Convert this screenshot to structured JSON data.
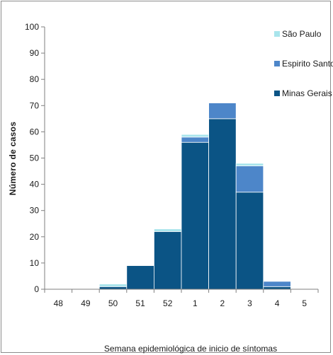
{
  "chart_data": {
    "type": "bar",
    "stacked": true,
    "categories": [
      "48",
      "49",
      "50",
      "51",
      "52",
      "1",
      "2",
      "3",
      "4",
      "5"
    ],
    "series": [
      {
        "name": "Minas Gerais",
        "color": "#0b5485",
        "values": [
          0,
          0,
          1,
          9,
          22,
          56,
          65,
          37,
          1,
          0
        ]
      },
      {
        "name": "Espirito Santo",
        "color": "#4d86c9",
        "values": [
          0,
          0,
          0,
          0,
          0,
          2,
          6,
          10,
          2,
          0
        ]
      },
      {
        "name": "São Paulo",
        "color": "#a9e5ec",
        "values": [
          0,
          0,
          1,
          0,
          1,
          1,
          0,
          1,
          0,
          0
        ]
      }
    ],
    "title": "",
    "xlabel": "Semana epidemiológica de inicio de síntomas",
    "ylabel": "Número de casos",
    "ylim": [
      0,
      100
    ],
    "yticks": [
      "0",
      "10",
      "20",
      "30",
      "40",
      "50",
      "60",
      "70",
      "80",
      "90",
      "100"
    ],
    "grid": false,
    "legend_position": "top-right",
    "legend_order": [
      "São Paulo",
      "Espirito Santo",
      "Minas Gerais"
    ]
  }
}
